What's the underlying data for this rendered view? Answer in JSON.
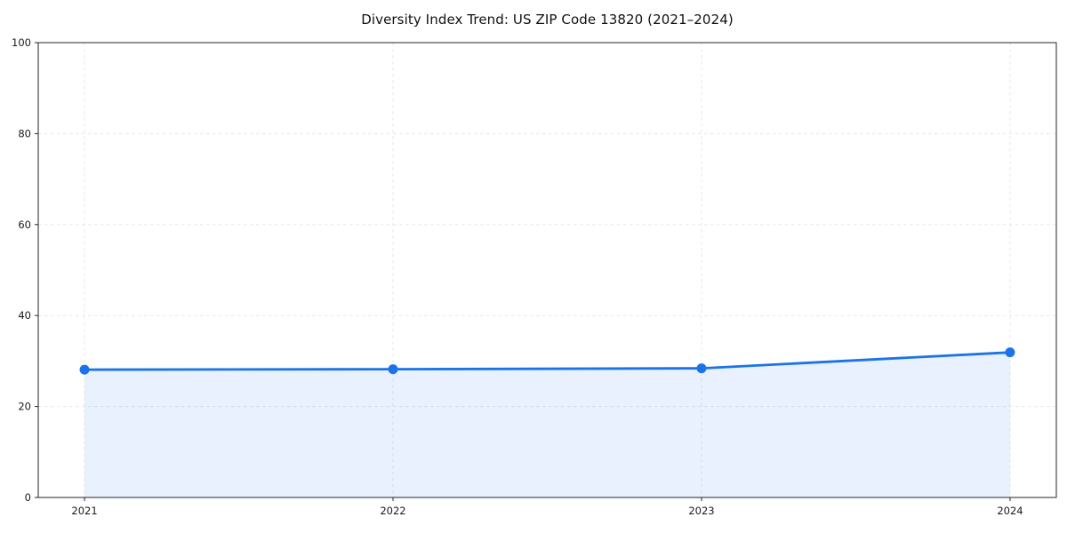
{
  "chart_data": {
    "type": "line",
    "title": "Diversity Index Trend: US ZIP Code 13820 (2021–2024)",
    "x": [
      2021,
      2022,
      2023,
      2024
    ],
    "xtick_labels": [
      "2021",
      "2022",
      "2023",
      "2024"
    ],
    "series": [
      {
        "name": "Diversity Index",
        "values": [
          28.1,
          28.2,
          28.4,
          31.9
        ]
      }
    ],
    "xlabel": "",
    "ylabel": "",
    "ylim": [
      0,
      100
    ],
    "yticks": [
      0,
      20,
      40,
      60,
      80,
      100
    ],
    "grid": true,
    "grid_style": "dashed",
    "legend_position": "none",
    "area_fill": true,
    "marker": "circle",
    "colors": {
      "line": "#1a73e8",
      "marker": "#1a73e8",
      "area_fill": "rgba(26,115,232,0.10)",
      "grid": "#e7e7e7",
      "spine": "#262626",
      "text": "#1a1a1a",
      "background": "#ffffff"
    }
  }
}
